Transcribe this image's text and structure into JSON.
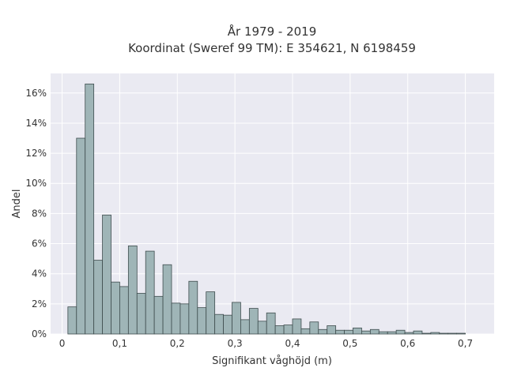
{
  "chart_data": {
    "type": "bar",
    "title": "År 1979 - 2019",
    "subtitle": "Koordinat (Sweref 99 TM): E 354621, N 6198459",
    "xlabel": "Signifikant våghöjd (m)",
    "ylabel": "Andel",
    "xlim": [
      -0.02,
      0.75
    ],
    "ylim": [
      0,
      17.3
    ],
    "x_ticks": [
      0,
      0.1,
      0.2,
      0.3,
      0.4,
      0.5,
      0.6,
      0.7
    ],
    "x_tick_labels": [
      "0",
      "0,1",
      "0,2",
      "0,3",
      "0,4",
      "0,5",
      "0,6",
      "0,7"
    ],
    "y_ticks": [
      0,
      2,
      4,
      6,
      8,
      10,
      12,
      14,
      16
    ],
    "y_tick_labels": [
      "0%",
      "2%",
      "4%",
      "6%",
      "8%",
      "10%",
      "12%",
      "14%",
      "16%"
    ],
    "bin_width": 0.015,
    "bin_starts": [
      0.01,
      0.025,
      0.04,
      0.055,
      0.07,
      0.085,
      0.1,
      0.115,
      0.13,
      0.145,
      0.16,
      0.175,
      0.19,
      0.205,
      0.22,
      0.235,
      0.25,
      0.265,
      0.28,
      0.295,
      0.31,
      0.325,
      0.34,
      0.355,
      0.37,
      0.385,
      0.4,
      0.415,
      0.43,
      0.445,
      0.46,
      0.475,
      0.49,
      0.505,
      0.52,
      0.535,
      0.55,
      0.565,
      0.58,
      0.595,
      0.61,
      0.625,
      0.64,
      0.655,
      0.67,
      0.685
    ],
    "values": [
      1.8,
      13.0,
      16.6,
      4.9,
      7.9,
      3.45,
      3.15,
      5.85,
      2.7,
      5.5,
      2.5,
      4.6,
      2.05,
      2.0,
      3.5,
      1.75,
      2.8,
      1.3,
      1.25,
      2.1,
      0.95,
      1.7,
      0.85,
      1.4,
      0.55,
      0.6,
      1.0,
      0.35,
      0.8,
      0.3,
      0.55,
      0.25,
      0.25,
      0.4,
      0.2,
      0.3,
      0.15,
      0.15,
      0.25,
      0.1,
      0.2,
      0.05,
      0.1,
      0.05,
      0.05,
      0.05
    ],
    "grid": true,
    "background_color": "#eaeaf2",
    "bar_color": "#9fb5b7",
    "bar_edge_color": "#3f4d4e"
  }
}
